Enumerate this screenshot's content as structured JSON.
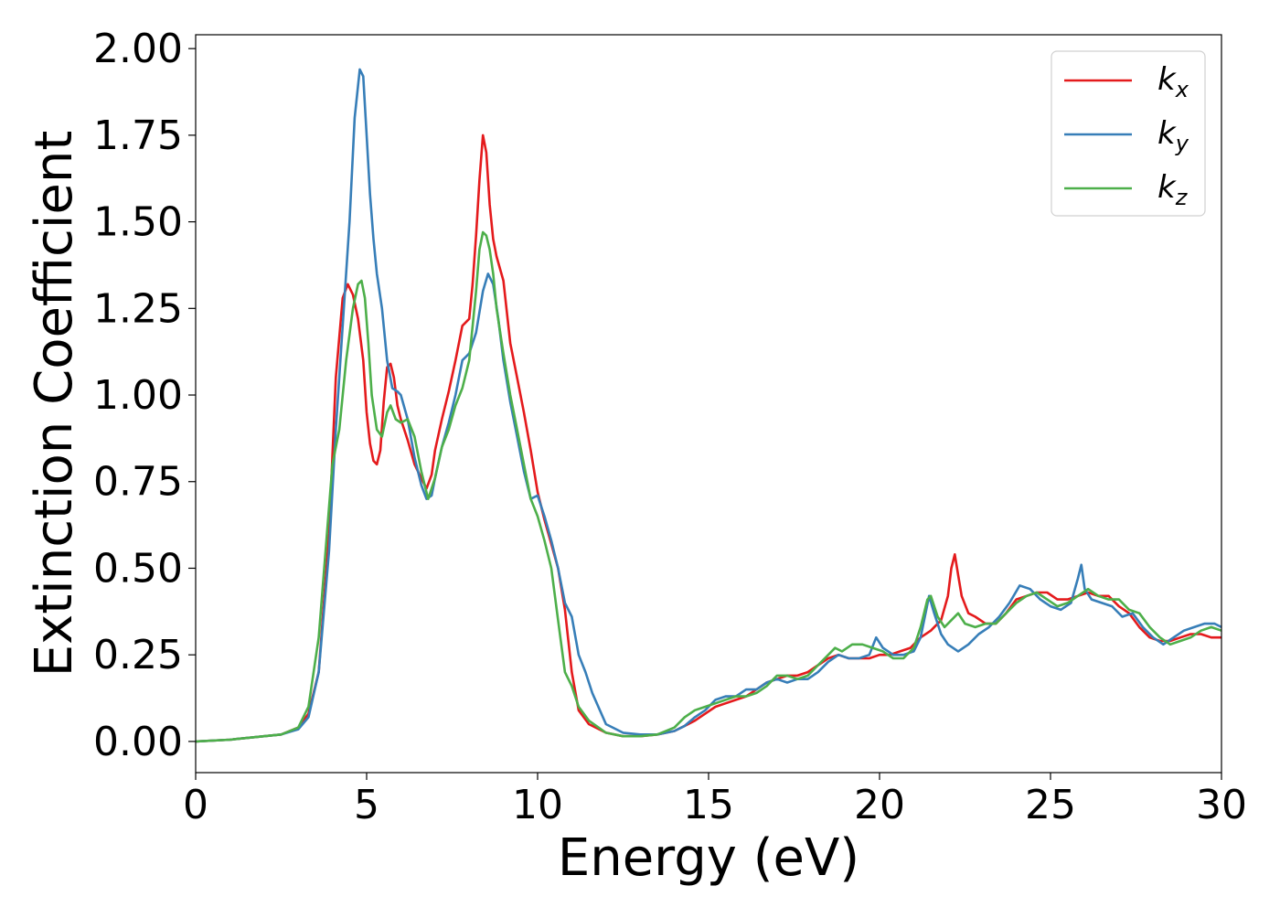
{
  "chart_data": {
    "type": "line",
    "xlabel": "Energy (eV)",
    "ylabel": "Extinction Coefficient",
    "xlim": [
      0,
      30
    ],
    "ylim": [
      -0.09,
      2.04
    ],
    "x_ticks": [
      "0",
      "5",
      "10",
      "15",
      "20",
      "25",
      "30"
    ],
    "y_ticks": [
      "0.00",
      "0.25",
      "0.50",
      "0.75",
      "1.00",
      "1.25",
      "1.50",
      "1.75",
      "2.00"
    ],
    "x_tick_values": [
      0,
      5,
      10,
      15,
      20,
      25,
      30
    ],
    "y_tick_values": [
      0,
      0.25,
      0.5,
      0.75,
      1.0,
      1.25,
      1.5,
      1.75,
      2.0
    ],
    "grid": false,
    "legend_position": "top-right",
    "series": [
      {
        "name": "k",
        "subscript": "x",
        "color": "#e41a1c",
        "x": [
          0,
          1,
          2,
          2.5,
          3,
          3.3,
          3.6,
          3.9,
          4.1,
          4.3,
          4.45,
          4.6,
          4.75,
          4.9,
          5.0,
          5.1,
          5.2,
          5.3,
          5.4,
          5.5,
          5.6,
          5.7,
          5.8,
          5.9,
          6.0,
          6.2,
          6.4,
          6.6,
          6.75,
          6.9,
          7.0,
          7.2,
          7.4,
          7.6,
          7.8,
          8.0,
          8.1,
          8.2,
          8.3,
          8.4,
          8.5,
          8.6,
          8.7,
          8.8,
          9.0,
          9.2,
          9.4,
          9.6,
          9.8,
          10.0,
          10.2,
          10.4,
          10.6,
          10.8,
          11.0,
          11.2,
          11.5,
          12.0,
          12.5,
          13.0,
          13.5,
          14.0,
          14.3,
          14.6,
          14.9,
          15.2,
          15.5,
          15.8,
          16.1,
          16.4,
          16.7,
          17.0,
          17.3,
          17.6,
          17.9,
          18.2,
          18.5,
          18.8,
          19.1,
          19.4,
          19.7,
          20.0,
          20.3,
          20.6,
          20.9,
          21.2,
          21.5,
          21.8,
          22.0,
          22.1,
          22.2,
          22.3,
          22.4,
          22.6,
          22.8,
          23.1,
          23.4,
          23.7,
          24.0,
          24.3,
          24.6,
          24.9,
          25.2,
          25.5,
          25.8,
          26.1,
          26.4,
          26.7,
          27.0,
          27.3,
          27.6,
          27.9,
          28.2,
          28.5,
          28.8,
          29.1,
          29.4,
          29.7,
          30.0
        ],
        "y": [
          0.0,
          0.005,
          0.015,
          0.02,
          0.04,
          0.08,
          0.2,
          0.6,
          1.05,
          1.28,
          1.32,
          1.29,
          1.22,
          1.1,
          0.95,
          0.86,
          0.81,
          0.8,
          0.84,
          0.98,
          1.08,
          1.09,
          1.05,
          0.97,
          0.93,
          0.87,
          0.8,
          0.76,
          0.73,
          0.77,
          0.84,
          0.93,
          1.01,
          1.1,
          1.2,
          1.22,
          1.32,
          1.46,
          1.62,
          1.75,
          1.7,
          1.55,
          1.45,
          1.4,
          1.33,
          1.15,
          1.05,
          0.95,
          0.84,
          0.72,
          0.64,
          0.57,
          0.5,
          0.38,
          0.2,
          0.09,
          0.05,
          0.025,
          0.015,
          0.015,
          0.02,
          0.03,
          0.045,
          0.06,
          0.08,
          0.1,
          0.11,
          0.12,
          0.13,
          0.15,
          0.17,
          0.18,
          0.19,
          0.19,
          0.2,
          0.22,
          0.24,
          0.25,
          0.24,
          0.24,
          0.24,
          0.25,
          0.25,
          0.26,
          0.27,
          0.3,
          0.32,
          0.35,
          0.42,
          0.5,
          0.54,
          0.48,
          0.42,
          0.37,
          0.36,
          0.34,
          0.34,
          0.37,
          0.41,
          0.42,
          0.43,
          0.43,
          0.41,
          0.41,
          0.42,
          0.43,
          0.42,
          0.42,
          0.39,
          0.37,
          0.33,
          0.3,
          0.29,
          0.29,
          0.3,
          0.31,
          0.31,
          0.3,
          0.3
        ]
      },
      {
        "name": "k",
        "subscript": "y",
        "color": "#377eb8",
        "x": [
          0,
          1,
          2,
          2.5,
          3,
          3.3,
          3.6,
          3.9,
          4.1,
          4.3,
          4.5,
          4.65,
          4.8,
          4.9,
          5.0,
          5.1,
          5.2,
          5.3,
          5.45,
          5.6,
          5.75,
          5.9,
          6.0,
          6.2,
          6.4,
          6.6,
          6.75,
          6.9,
          7.0,
          7.2,
          7.4,
          7.6,
          7.8,
          8.0,
          8.2,
          8.4,
          8.55,
          8.7,
          8.85,
          9.0,
          9.2,
          9.4,
          9.6,
          9.8,
          10.0,
          10.2,
          10.4,
          10.6,
          10.8,
          11.0,
          11.2,
          11.4,
          11.6,
          12.0,
          12.5,
          13.0,
          13.5,
          14.0,
          14.3,
          14.6,
          14.9,
          15.2,
          15.5,
          15.8,
          16.1,
          16.4,
          16.7,
          17.0,
          17.3,
          17.6,
          17.9,
          18.2,
          18.5,
          18.8,
          19.1,
          19.4,
          19.7,
          19.9,
          20.1,
          20.4,
          20.7,
          21.0,
          21.2,
          21.45,
          21.6,
          21.8,
          22.0,
          22.3,
          22.6,
          22.9,
          23.2,
          23.5,
          23.8,
          24.1,
          24.4,
          24.7,
          25.0,
          25.3,
          25.6,
          25.8,
          25.9,
          26.0,
          26.2,
          26.5,
          26.8,
          27.1,
          27.4,
          27.7,
          28.0,
          28.3,
          28.6,
          28.9,
          29.2,
          29.5,
          29.8,
          30.0
        ],
        "y": [
          0.0,
          0.005,
          0.015,
          0.02,
          0.035,
          0.07,
          0.2,
          0.55,
          0.9,
          1.2,
          1.5,
          1.8,
          1.94,
          1.92,
          1.75,
          1.58,
          1.45,
          1.35,
          1.25,
          1.1,
          1.02,
          1.01,
          1.0,
          0.93,
          0.82,
          0.74,
          0.7,
          0.71,
          0.76,
          0.85,
          0.92,
          1.0,
          1.1,
          1.12,
          1.18,
          1.3,
          1.35,
          1.32,
          1.22,
          1.1,
          0.98,
          0.88,
          0.78,
          0.7,
          0.71,
          0.65,
          0.58,
          0.5,
          0.4,
          0.36,
          0.25,
          0.2,
          0.14,
          0.05,
          0.025,
          0.02,
          0.02,
          0.03,
          0.045,
          0.07,
          0.09,
          0.12,
          0.13,
          0.13,
          0.15,
          0.15,
          0.17,
          0.18,
          0.17,
          0.18,
          0.18,
          0.2,
          0.23,
          0.25,
          0.24,
          0.24,
          0.25,
          0.3,
          0.27,
          0.25,
          0.25,
          0.26,
          0.3,
          0.42,
          0.37,
          0.31,
          0.28,
          0.26,
          0.28,
          0.31,
          0.33,
          0.36,
          0.4,
          0.45,
          0.44,
          0.41,
          0.39,
          0.38,
          0.4,
          0.47,
          0.51,
          0.44,
          0.41,
          0.4,
          0.39,
          0.36,
          0.37,
          0.33,
          0.3,
          0.28,
          0.3,
          0.32,
          0.33,
          0.34,
          0.34,
          0.33
        ]
      },
      {
        "name": "k",
        "subscript": "z",
        "color": "#4daf4a",
        "x": [
          0,
          1,
          2,
          2.5,
          3,
          3.3,
          3.6,
          3.8,
          4.0,
          4.2,
          4.4,
          4.6,
          4.75,
          4.85,
          4.95,
          5.05,
          5.15,
          5.3,
          5.45,
          5.6,
          5.7,
          5.85,
          6.0,
          6.2,
          6.4,
          6.6,
          6.8,
          7.0,
          7.2,
          7.4,
          7.6,
          7.8,
          8.0,
          8.2,
          8.3,
          8.4,
          8.5,
          8.6,
          8.7,
          8.8,
          9.0,
          9.2,
          9.4,
          9.6,
          9.8,
          10.0,
          10.2,
          10.4,
          10.6,
          10.8,
          11.0,
          11.2,
          11.5,
          12.0,
          12.5,
          13.0,
          13.5,
          14.0,
          14.3,
          14.6,
          14.9,
          15.2,
          15.5,
          15.8,
          16.1,
          16.4,
          16.7,
          17.0,
          17.3,
          17.6,
          17.9,
          18.2,
          18.5,
          18.7,
          18.9,
          19.2,
          19.5,
          19.8,
          20.1,
          20.4,
          20.7,
          21.0,
          21.2,
          21.4,
          21.5,
          21.7,
          21.9,
          22.1,
          22.3,
          22.5,
          22.8,
          23.1,
          23.4,
          23.7,
          24.0,
          24.3,
          24.6,
          24.9,
          25.2,
          25.5,
          25.8,
          26.1,
          26.4,
          26.7,
          27.0,
          27.3,
          27.6,
          27.9,
          28.2,
          28.5,
          28.8,
          29.1,
          29.4,
          29.7,
          30.0
        ],
        "y": [
          0.0,
          0.005,
          0.015,
          0.02,
          0.04,
          0.1,
          0.3,
          0.55,
          0.8,
          0.9,
          1.1,
          1.25,
          1.32,
          1.33,
          1.28,
          1.15,
          1.0,
          0.9,
          0.88,
          0.95,
          0.97,
          0.93,
          0.92,
          0.93,
          0.88,
          0.78,
          0.7,
          0.76,
          0.85,
          0.9,
          0.97,
          1.02,
          1.1,
          1.3,
          1.42,
          1.47,
          1.46,
          1.42,
          1.35,
          1.25,
          1.12,
          1.0,
          0.9,
          0.8,
          0.7,
          0.65,
          0.58,
          0.5,
          0.35,
          0.2,
          0.16,
          0.1,
          0.06,
          0.025,
          0.015,
          0.015,
          0.02,
          0.04,
          0.07,
          0.09,
          0.1,
          0.11,
          0.12,
          0.13,
          0.13,
          0.14,
          0.16,
          0.19,
          0.19,
          0.18,
          0.19,
          0.22,
          0.25,
          0.27,
          0.26,
          0.28,
          0.28,
          0.27,
          0.26,
          0.24,
          0.24,
          0.27,
          0.33,
          0.41,
          0.42,
          0.36,
          0.33,
          0.35,
          0.37,
          0.34,
          0.33,
          0.34,
          0.34,
          0.37,
          0.4,
          0.42,
          0.43,
          0.41,
          0.39,
          0.4,
          0.42,
          0.44,
          0.42,
          0.41,
          0.41,
          0.38,
          0.37,
          0.33,
          0.3,
          0.28,
          0.29,
          0.3,
          0.32,
          0.33,
          0.32
        ]
      }
    ]
  }
}
